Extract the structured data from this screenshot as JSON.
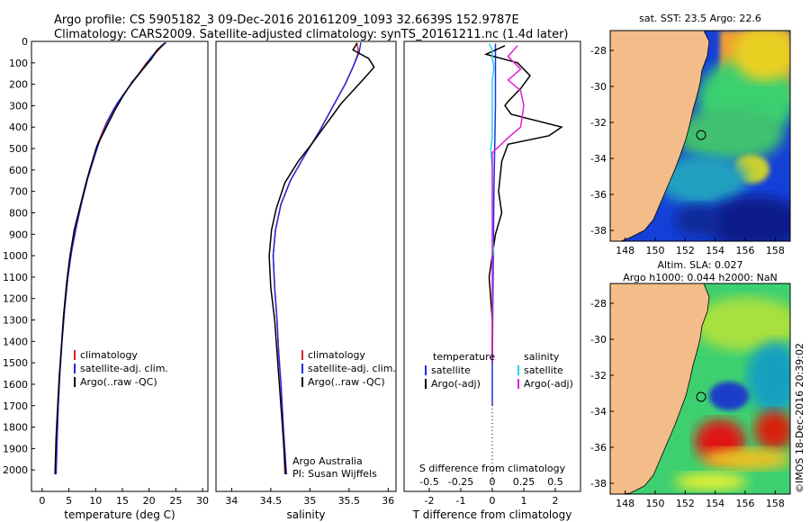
{
  "header": {
    "line1": "Argo profile: CS 5905182_3 09-Dec-2016 20161209_1093 32.6639S 152.9787E",
    "line2": "Climatology: CARS2009. Satellite-adjusted climatology: synTS_20161211.nc (1.4d later)"
  },
  "colors": {
    "climatology": "#dd2222",
    "satellite": "#1f2ee0",
    "argo": "#000000",
    "sat_sal": "#22d4e8",
    "argo_sal": "#e020d0"
  },
  "chart_data": [
    {
      "type": "line",
      "name": "temperature-panel",
      "xlabel": "temperature (deg C)",
      "xlim": [
        -2,
        31
      ],
      "ylim": [
        2100,
        0
      ],
      "xticks": [
        0,
        5,
        10,
        15,
        20,
        25,
        30
      ],
      "yticks": [
        0,
        100,
        200,
        300,
        400,
        500,
        600,
        700,
        800,
        900,
        1000,
        1100,
        1200,
        1300,
        1400,
        1500,
        1600,
        1700,
        1800,
        1900,
        2000
      ],
      "legend": {
        "position": "bottom",
        "entries": [
          "climatology",
          "satellite-adj. clim.",
          "Argo(..raw -QC)"
        ]
      },
      "series": [
        {
          "name": "climatology",
          "color": "#dd2222",
          "points": [
            [
              23,
              5
            ],
            [
              22.5,
              20
            ],
            [
              21,
              60
            ],
            [
              19.5,
              100
            ],
            [
              17.5,
              170
            ],
            [
              15.5,
              240
            ],
            [
              13.5,
              310
            ],
            [
              12,
              380
            ],
            [
              10.5,
              470
            ],
            [
              9.5,
              560
            ],
            [
              8.5,
              640
            ],
            [
              7.5,
              740
            ],
            [
              6.5,
              850
            ],
            [
              5.5,
              980
            ],
            [
              4.8,
              1100
            ],
            [
              4.2,
              1250
            ],
            [
              3.7,
              1400
            ],
            [
              3.3,
              1550
            ],
            [
              3,
              1700
            ],
            [
              2.8,
              1850
            ],
            [
              2.6,
              2020
            ]
          ]
        },
        {
          "name": "satellite-adj. clim.",
          "color": "#1f2ee0",
          "points": [
            [
              23.2,
              5
            ],
            [
              22,
              30
            ],
            [
              20.5,
              70
            ],
            [
              18.5,
              140
            ],
            [
              16,
              220
            ],
            [
              14,
              290
            ],
            [
              12.3,
              370
            ],
            [
              10.8,
              460
            ],
            [
              9.5,
              560
            ],
            [
              8.5,
              640
            ],
            [
              7.5,
              740
            ],
            [
              6.5,
              850
            ],
            [
              5.5,
              980
            ],
            [
              4.8,
              1100
            ],
            [
              4.2,
              1250
            ],
            [
              3.7,
              1400
            ],
            [
              3.3,
              1550
            ],
            [
              3,
              1700
            ],
            [
              2.8,
              1850
            ],
            [
              2.6,
              2020
            ]
          ]
        },
        {
          "name": "Argo(..raw -QC)",
          "color": "#000000",
          "points": [
            [
              22.8,
              10
            ],
            [
              21.5,
              40
            ],
            [
              20.5,
              80
            ],
            [
              18.5,
              140
            ],
            [
              16.8,
              190
            ],
            [
              15,
              260
            ],
            [
              13.6,
              320
            ],
            [
              12,
              400
            ],
            [
              10.2,
              490
            ],
            [
              9,
              590
            ],
            [
              8.2,
              660
            ],
            [
              7.2,
              760
            ],
            [
              6,
              880
            ],
            [
              5.2,
              1000
            ],
            [
              4.6,
              1120
            ],
            [
              4,
              1280
            ],
            [
              3.6,
              1420
            ],
            [
              3.2,
              1560
            ],
            [
              2.9,
              1700
            ],
            [
              2.6,
              1850
            ],
            [
              2.4,
              2020
            ]
          ]
        }
      ]
    },
    {
      "type": "line",
      "name": "salinity-panel",
      "xlabel": "salinity",
      "xlim": [
        33.8,
        36.1
      ],
      "ylim": [
        2100,
        0
      ],
      "xticks": [
        34,
        34.5,
        35,
        35.5,
        36
      ],
      "xtick_labels": [
        "34",
        "34.5",
        "35",
        "35.5",
        "36"
      ],
      "legend": {
        "position": "bottom",
        "entries": [
          "climatology",
          "satellite-adj. clim.",
          "Argo(..raw -QC)"
        ]
      },
      "annotation": [
        "Argo Australia",
        "PI: Susan Wijffels"
      ],
      "series": [
        {
          "name": "climatology",
          "color": "#dd2222",
          "points": [
            [
              35.6,
              5
            ],
            [
              35.62,
              50
            ],
            [
              35.55,
              120
            ],
            [
              35.45,
              200
            ],
            [
              35.3,
              300
            ],
            [
              35.12,
              420
            ],
            [
              34.92,
              540
            ],
            [
              34.75,
              650
            ],
            [
              34.63,
              760
            ],
            [
              34.56,
              880
            ],
            [
              34.53,
              1000
            ],
            [
              34.55,
              1150
            ],
            [
              34.58,
              1300
            ],
            [
              34.6,
              1450
            ],
            [
              34.63,
              1600
            ],
            [
              34.66,
              1800
            ],
            [
              34.68,
              2020
            ]
          ]
        },
        {
          "name": "satellite-adj. clim.",
          "color": "#1f2ee0",
          "points": [
            [
              35.65,
              5
            ],
            [
              35.63,
              50
            ],
            [
              35.55,
              120
            ],
            [
              35.45,
              200
            ],
            [
              35.3,
              300
            ],
            [
              35.12,
              420
            ],
            [
              34.92,
              540
            ],
            [
              34.75,
              650
            ],
            [
              34.63,
              760
            ],
            [
              34.56,
              880
            ],
            [
              34.53,
              1000
            ],
            [
              34.55,
              1150
            ],
            [
              34.58,
              1300
            ],
            [
              34.6,
              1450
            ],
            [
              34.63,
              1600
            ],
            [
              34.66,
              1800
            ],
            [
              34.7,
              2020
            ]
          ]
        },
        {
          "name": "Argo(..raw -QC)",
          "color": "#000000",
          "points": [
            [
              35.6,
              10
            ],
            [
              35.55,
              40
            ],
            [
              35.75,
              80
            ],
            [
              35.82,
              120
            ],
            [
              35.7,
              170
            ],
            [
              35.55,
              230
            ],
            [
              35.4,
              290
            ],
            [
              35.3,
              340
            ],
            [
              35.18,
              400
            ],
            [
              35.02,
              480
            ],
            [
              34.85,
              560
            ],
            [
              34.68,
              660
            ],
            [
              34.57,
              780
            ],
            [
              34.51,
              880
            ],
            [
              34.48,
              1000
            ],
            [
              34.5,
              1150
            ],
            [
              34.55,
              1300
            ],
            [
              34.58,
              1450
            ],
            [
              34.61,
              1600
            ],
            [
              34.65,
              1800
            ],
            [
              34.69,
              2020
            ]
          ]
        }
      ]
    },
    {
      "type": "line",
      "name": "difference-panel",
      "xlabel": "T difference from climatology",
      "xlabel2": "S difference from climatology",
      "xlim": [
        -2.8,
        2.8
      ],
      "ylim": [
        2100,
        0
      ],
      "xticks": [
        -2,
        -1,
        0,
        1,
        2
      ],
      "xticks_S": [
        -0.5,
        -0.25,
        0,
        0.25,
        0.5
      ],
      "xtick_labels_S": [
        "-0.5",
        "-0.25",
        "0",
        "0.25",
        "0.5"
      ],
      "legend": {
        "headers": [
          "temperature",
          "salinity"
        ],
        "entries": [
          "satellite",
          "Argo(-adj)",
          "satellite",
          "Argo(-adj)"
        ]
      },
      "series": [
        {
          "name": "satellite",
          "quantity": "temperature",
          "color": "#1f2ee0",
          "points": [
            [
              0.1,
              10
            ],
            [
              0.1,
              300
            ],
            [
              0.05,
              700
            ],
            [
              0,
              1500
            ],
            [
              0,
              1700
            ]
          ]
        },
        {
          "name": "Argo(-adj)",
          "quantity": "temperature",
          "color": "#000000",
          "points": [
            [
              0.4,
              20
            ],
            [
              -0.2,
              60
            ],
            [
              0.8,
              100
            ],
            [
              1.2,
              160
            ],
            [
              0.9,
              220
            ],
            [
              0.5,
              280
            ],
            [
              0.4,
              300
            ],
            [
              0.6,
              340
            ],
            [
              2.2,
              400
            ],
            [
              1.8,
              440
            ],
            [
              0.5,
              480
            ],
            [
              0.3,
              560
            ],
            [
              0.2,
              700
            ],
            [
              0.3,
              800
            ],
            [
              0.1,
              900
            ],
            [
              0,
              1000
            ],
            [
              -0.1,
              1100
            ],
            [
              0,
              1300
            ],
            [
              0,
              1500
            ]
          ]
        },
        {
          "name": "satellite",
          "quantity": "salinity",
          "color": "#22d4e8",
          "points": [
            [
              -0.1,
              10
            ],
            [
              0,
              40
            ],
            [
              0,
              80
            ],
            [
              0.05,
              120
            ],
            [
              0,
              180
            ],
            [
              0,
              300
            ],
            [
              0,
              450
            ],
            [
              -0.05,
              500
            ],
            [
              0,
              600
            ],
            [
              0,
              800
            ],
            [
              0,
              900
            ],
            [
              0.05,
              1000
            ]
          ]
        },
        {
          "name": "Argo(-adj)",
          "quantity": "salinity",
          "color": "#e020d0",
          "points": [
            [
              0.8,
              20
            ],
            [
              0.5,
              70
            ],
            [
              0.9,
              130
            ],
            [
              0.5,
              180
            ],
            [
              0.9,
              230
            ],
            [
              1,
              300
            ],
            [
              0.9,
              400
            ],
            [
              0.5,
              450
            ],
            [
              0,
              520
            ],
            [
              0,
              650
            ],
            [
              0,
              800
            ],
            [
              0,
              1000
            ],
            [
              0,
              1500
            ]
          ]
        }
      ]
    },
    {
      "type": "heatmap",
      "name": "sst-map",
      "title": "sat. SST: 23.5 Argo: 22.6",
      "xlim": [
        147,
        159
      ],
      "ylim": [
        -38.6,
        -26.9
      ],
      "xticks": [
        148,
        150,
        152,
        154,
        156,
        158
      ],
      "yticks": [
        -28,
        -30,
        -32,
        -34,
        -36,
        -38
      ],
      "argo_location": [
        153,
        -32.66
      ]
    },
    {
      "type": "heatmap",
      "name": "sla-map",
      "title": "Altim. SLA: 0.027",
      "subtitle": "Argo h1000: 0.044 h2000: NaN",
      "xlim": [
        147,
        159
      ],
      "ylim": [
        -38.6,
        -26.9
      ],
      "xticks": [
        148,
        150,
        152,
        154,
        156,
        158
      ],
      "yticks": [
        -28,
        -30,
        -32,
        -34,
        -36,
        -38
      ],
      "argo_location": [
        153,
        -32.66
      ]
    }
  ],
  "watermark": "©IMOS 18-Dec-2016 20:39:02"
}
